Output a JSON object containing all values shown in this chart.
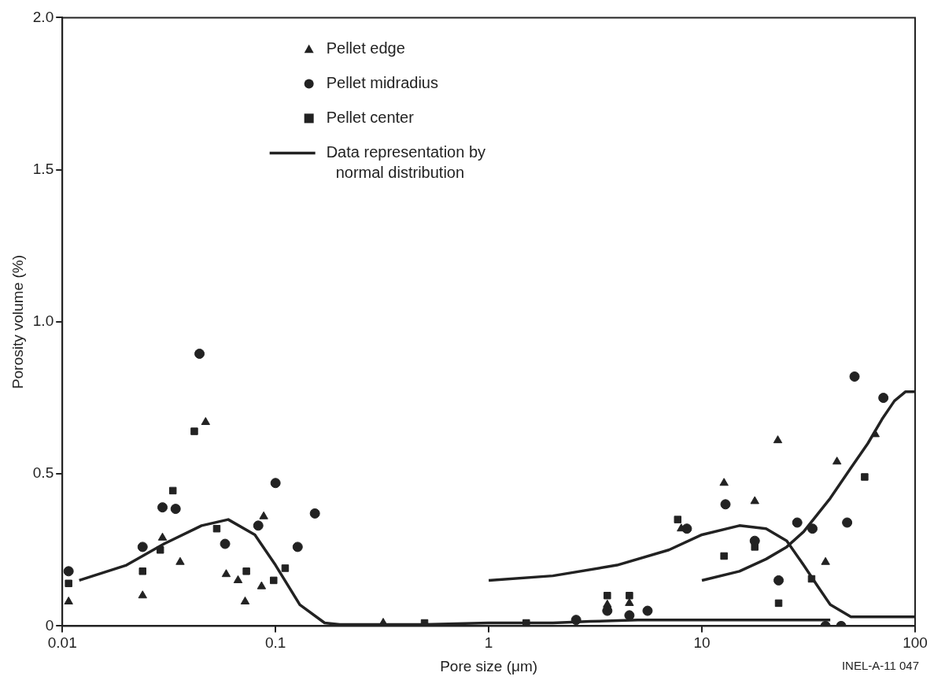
{
  "chart_data": {
    "type": "scatter",
    "xlabel": "Pore size (μm)",
    "ylabel": "Porosity volume (%)",
    "log": "x",
    "xlim": [
      0.01,
      100
    ],
    "xticks": [
      0.01,
      0.1,
      1,
      10,
      100
    ],
    "ylim": [
      0,
      2
    ],
    "yticks": [
      0,
      {
        "value": 0.5,
        "label": "0.5"
      },
      {
        "value": 1,
        "label": "1.0"
      },
      {
        "value": 1.5,
        "label": "1.5"
      },
      {
        "value": 2,
        "label": "2.0"
      }
    ],
    "grid": false,
    "legend": "top",
    "annotations": [
      "INEL-A-11 047"
    ],
    "series": [
      {
        "name": "Pellet edge",
        "color": "#222222",
        "marker": "triangle",
        "x": [
          0.0107,
          0.0238,
          0.0295,
          0.0357,
          0.047,
          0.0587,
          0.0667,
          0.072,
          0.086,
          0.088,
          0.32,
          3.6,
          4.57,
          8.0,
          12.7,
          17.7,
          22.7,
          38,
          43,
          65
        ],
        "values": [
          0.08,
          0.1,
          0.29,
          0.21,
          0.67,
          0.17,
          0.15,
          0.08,
          0.13,
          0.36,
          0.01,
          0.07,
          0.075,
          0.32,
          0.47,
          0.41,
          0.61,
          0.21,
          0.54,
          0.63
        ]
      },
      {
        "name": "Pellet midradius",
        "color": "#222222",
        "marker": "circle",
        "x": [
          0.0107,
          0.0238,
          0.0295,
          0.034,
          0.044,
          0.058,
          0.083,
          0.1,
          0.127,
          0.153,
          2.57,
          3.6,
          4.57,
          5.56,
          8.5,
          12.9,
          17.7,
          22.9,
          28,
          33,
          38,
          45,
          48,
          52,
          71
        ],
        "values": [
          0.18,
          0.26,
          0.39,
          0.385,
          0.895,
          0.27,
          0.33,
          0.47,
          0.26,
          0.37,
          0.02,
          0.05,
          0.035,
          0.05,
          0.32,
          0.4,
          0.28,
          0.15,
          0.34,
          0.32,
          0.0,
          0.0,
          0.34,
          0.82,
          0.75
        ]
      },
      {
        "name": "Pellet center",
        "color": "#222222",
        "marker": "square",
        "x": [
          0.0107,
          0.0238,
          0.0288,
          0.033,
          0.0416,
          0.053,
          0.073,
          0.098,
          0.111,
          0.5,
          1.5,
          3.6,
          4.57,
          7.7,
          12.7,
          17.7,
          22.9,
          32.7,
          58
        ],
        "values": [
          0.14,
          0.18,
          0.25,
          0.445,
          0.64,
          0.32,
          0.18,
          0.15,
          0.19,
          0.01,
          0.01,
          0.1,
          0.1,
          0.35,
          0.23,
          0.26,
          0.075,
          0.155,
          0.49
        ]
      },
      {
        "name": "Data representation by normal distribution",
        "type": "line",
        "color": "#222222",
        "marker": "none",
        "x": [
          0.012,
          0.02,
          0.03,
          0.045,
          0.06,
          0.08,
          0.1,
          0.13,
          0.17,
          0.2,
          0.5,
          1,
          2,
          3,
          5,
          40
        ],
        "values": [
          0.15,
          0.2,
          0.27,
          0.33,
          0.35,
          0.3,
          0.2,
          0.07,
          0.01,
          0.005,
          0.005,
          0.01,
          0.01,
          0.015,
          0.02,
          0.02
        ]
      },
      {
        "type": "line",
        "color": "#222222",
        "marker": "none",
        "x": [
          1,
          2,
          4,
          7,
          10,
          15,
          20,
          25,
          30,
          35,
          40,
          50,
          100
        ],
        "values": [
          0.15,
          0.165,
          0.2,
          0.25,
          0.3,
          0.33,
          0.32,
          0.28,
          0.2,
          0.13,
          0.07,
          0.03,
          0.03
        ]
      },
      {
        "type": "line",
        "color": "#222222",
        "marker": "none",
        "x": [
          10,
          15,
          20,
          25,
          30,
          40,
          50,
          60,
          70,
          80,
          90,
          100
        ],
        "values": [
          0.15,
          0.18,
          0.22,
          0.26,
          0.31,
          0.42,
          0.52,
          0.6,
          0.68,
          0.74,
          0.77,
          0.77
        ]
      }
    ]
  }
}
